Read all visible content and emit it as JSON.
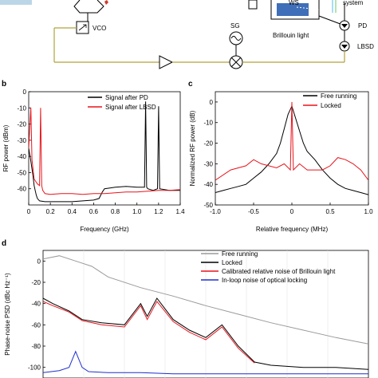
{
  "diagram": {
    "vco_label": "VCO",
    "sg_label": "SG",
    "pd_label": "PD",
    "lbsd_label": "LBSD",
    "ws_label": "WS",
    "system_label": "system",
    "brillouin_label": "Brillouin light"
  },
  "chart_data": [
    {
      "panel": "b",
      "type": "line",
      "xlabel": "Frequency (GHz)",
      "ylabel": "RF power (dBm)",
      "xlim": [
        0,
        1.4
      ],
      "ylim": [
        -70,
        0
      ],
      "xticks": [
        "0",
        "0.2",
        "0.4",
        "0.6",
        "0.8",
        "1.0",
        "1.2",
        "1.4"
      ],
      "yticks": [
        "0",
        "-10",
        "-20",
        "-30",
        "-40",
        "-50",
        "-60"
      ],
      "legend_position": "top-right",
      "series": [
        {
          "name": "Signal after PD",
          "color": "#000000",
          "x": [
            0,
            0.02,
            0.04,
            0.05,
            0.06,
            0.07,
            0.08,
            0.1,
            0.15,
            0.2,
            0.3,
            0.4,
            0.5,
            0.6,
            0.65,
            0.68,
            0.7,
            0.75,
            0.8,
            0.9,
            1.0,
            1.07,
            1.08,
            1.09,
            1.1,
            1.15,
            1.19,
            1.2,
            1.21,
            1.3,
            1.4
          ],
          "y": [
            -35,
            -43,
            -52,
            -58,
            -61,
            -64,
            -66,
            -67.5,
            -68,
            -68,
            -68,
            -68,
            -67.5,
            -67,
            -66,
            -62,
            -60,
            -59.5,
            -59,
            -58.5,
            -59,
            -59,
            -6,
            -59,
            -60,
            -61,
            -60,
            -9,
            -60,
            -61,
            -61
          ]
        },
        {
          "name": "Signal after LBSD",
          "color": "#e8141c",
          "x": [
            0,
            0.02,
            0.03,
            0.05,
            0.08,
            0.1,
            0.11,
            0.12,
            0.13,
            0.15,
            0.2,
            0.3,
            0.4,
            0.5,
            0.6,
            0.7,
            0.8,
            0.9,
            1.0,
            1.1,
            1.2,
            1.3,
            1.4
          ],
          "y": [
            -35,
            -10,
            -42,
            -54,
            -57,
            -58,
            -10,
            -58,
            -61,
            -63,
            -63.5,
            -63,
            -63,
            -63.5,
            -63,
            -63,
            -62.5,
            -62,
            -62,
            -61.5,
            -61,
            -61,
            -60.5
          ]
        }
      ]
    },
    {
      "panel": "c",
      "type": "line",
      "xlabel": "Relative frequency (MHz)",
      "ylabel": "Normalized RF power (dB)",
      "xlim": [
        -1.0,
        1.0
      ],
      "ylim": [
        -50,
        5
      ],
      "xticks": [
        "-1.0",
        "-0.5",
        "0",
        "0.5",
        "1.0"
      ],
      "yticks": [
        "0",
        "-10",
        "-20",
        "-30",
        "-40",
        "-50"
      ],
      "legend_position": "top-right",
      "series": [
        {
          "name": "Free running",
          "color": "#000000",
          "x": [
            -1.0,
            -0.9,
            -0.8,
            -0.7,
            -0.6,
            -0.5,
            -0.4,
            -0.3,
            -0.2,
            -0.15,
            -0.1,
            -0.05,
            0,
            0.05,
            0.1,
            0.15,
            0.2,
            0.3,
            0.4,
            0.5,
            0.6,
            0.7,
            0.8,
            0.9,
            1.0
          ],
          "y": [
            -44,
            -43,
            -42,
            -41,
            -40,
            -37,
            -34,
            -30,
            -25,
            -20,
            -13,
            -6,
            -2,
            -8,
            -14,
            -20,
            -24,
            -28,
            -33,
            -37,
            -40,
            -42,
            -43,
            -44,
            -45
          ]
        },
        {
          "name": "Locked",
          "color": "#e8141c",
          "x": [
            -1.0,
            -0.8,
            -0.6,
            -0.5,
            -0.4,
            -0.2,
            -0.1,
            -0.02,
            0,
            0.02,
            0.1,
            0.2,
            0.4,
            0.5,
            0.6,
            0.7,
            0.8,
            0.9,
            1.0
          ],
          "y": [
            -38,
            -33,
            -31,
            -28,
            -30,
            -32,
            -30,
            -33,
            0,
            -33,
            -30,
            -33,
            -33,
            -31,
            -27,
            -28,
            -30,
            -33,
            -38
          ]
        }
      ]
    },
    {
      "panel": "d",
      "type": "line",
      "xlabel": "",
      "ylabel": "Phase-noise PSD (dBc Hz⁻¹)",
      "ylim": [
        -110,
        10
      ],
      "yticks": [
        "0",
        "-20",
        "-40",
        "-60",
        "-80",
        "-100"
      ],
      "legend_position": "top-right",
      "series": [
        {
          "name": "Free running",
          "color": "#9a9a9a",
          "x": [
            0,
            0.05,
            0.1,
            0.15,
            0.2,
            0.3,
            0.4,
            0.5,
            0.6,
            0.7,
            0.8,
            0.9,
            1.0
          ],
          "y": [
            2,
            5,
            0,
            -5,
            -15,
            -25,
            -33,
            -42,
            -50,
            -58,
            -65,
            -72,
            -78
          ]
        },
        {
          "name": "Locked",
          "color": "#000000",
          "x": [
            0,
            0.03,
            0.08,
            0.12,
            0.18,
            0.25,
            0.3,
            0.32,
            0.35,
            0.4,
            0.45,
            0.5,
            0.55,
            0.6,
            0.65,
            0.7,
            0.8,
            0.9,
            1.0
          ],
          "y": [
            -35,
            -40,
            -47,
            -55,
            -58,
            -60,
            -40,
            -52,
            -35,
            -55,
            -65,
            -72,
            -60,
            -80,
            -95,
            -98,
            -100,
            -100,
            -102
          ]
        },
        {
          "name": "Calibrated relative noise of Brillouin light",
          "color": "#e8141c",
          "x": [
            0,
            0.03,
            0.08,
            0.12,
            0.18,
            0.25,
            0.3,
            0.32,
            0.35,
            0.4,
            0.45,
            0.5,
            0.55,
            0.6,
            0.65
          ],
          "y": [
            -38,
            -42,
            -48,
            -56,
            -60,
            -62,
            -42,
            -55,
            -38,
            -57,
            -67,
            -74,
            -62,
            -82,
            -96
          ]
        },
        {
          "name": "In-loop noise of optical locking",
          "color": "#1f2fd0",
          "x": [
            0,
            0.05,
            0.08,
            0.1,
            0.12,
            0.14,
            0.2,
            0.3,
            0.4,
            0.5,
            0.6,
            0.7,
            0.8,
            0.9,
            1.0
          ],
          "y": [
            -105,
            -103,
            -100,
            -85,
            -100,
            -104,
            -105,
            -105,
            -106,
            -106,
            -106,
            -106,
            -106,
            -106,
            -106
          ]
        }
      ]
    }
  ]
}
